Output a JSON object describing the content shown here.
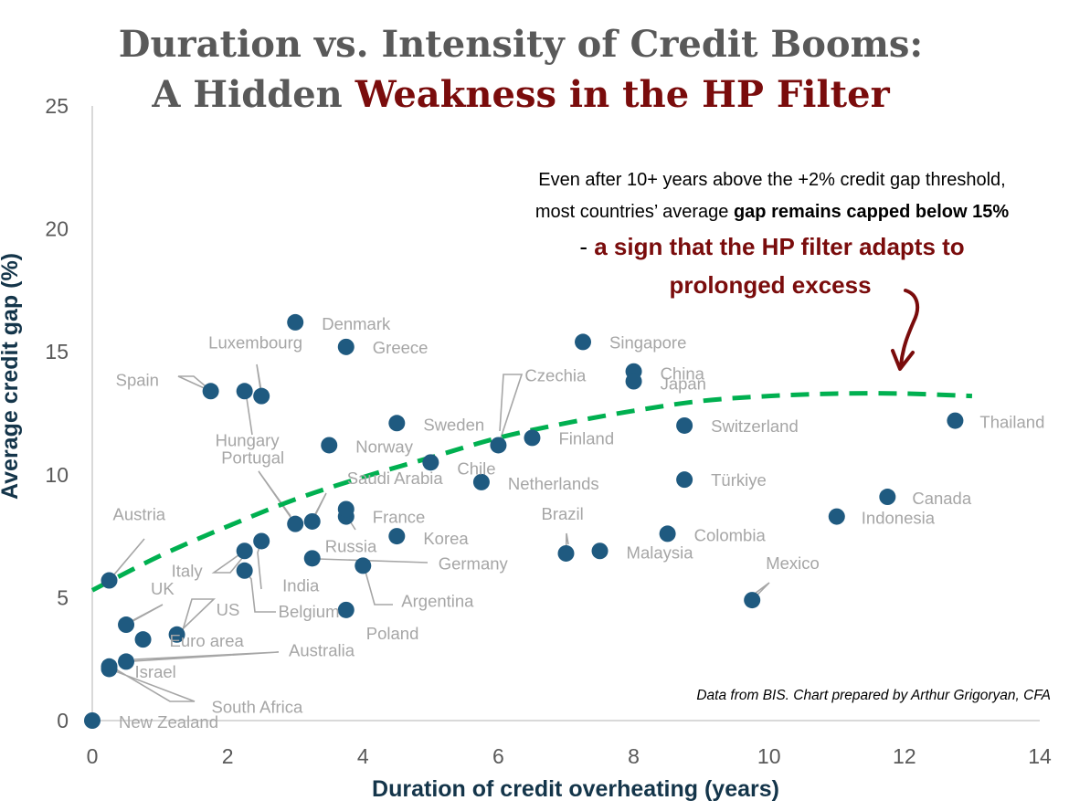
{
  "title": {
    "line1": "Duration vs. Intensity of Credit Booms:",
    "line2_prefix": "A Hidden ",
    "line2_highlight": "Weakness in the HP Filter"
  },
  "annotation": {
    "line1": "Even after 10+ years above the +2% credit gap threshold,",
    "line2_plain": "most countries’ average ",
    "line2_bold": "gap remains capped below 15%",
    "line3_dash": "- ",
    "line3_red": "a sign that the HP filter adapts to",
    "line4_red": "prolonged excess"
  },
  "source_note": "Data from BIS. Chart prepared by Arthur Grigoryan, CFA",
  "colors": {
    "points": "#1f5a80",
    "trend": "#00b050",
    "title_grey": "#595959",
    "title_red": "#7a0c0c",
    "label_grey": "#a6a6a6",
    "axis_title": "#14354a"
  },
  "chart_data": {
    "type": "scatter",
    "xlabel": "Duration of credit overheating (years)",
    "ylabel": "Average credit gap (%)",
    "xlim": [
      0,
      14
    ],
    "ylim": [
      0,
      25
    ],
    "xticks": [
      0,
      2,
      4,
      6,
      8,
      10,
      12,
      14
    ],
    "yticks": [
      0,
      5,
      10,
      15,
      20,
      25
    ],
    "grid": false,
    "points": [
      {
        "name": "Denmark",
        "x": 3.0,
        "y": 16.2
      },
      {
        "name": "Greece",
        "x": 3.75,
        "y": 15.2
      },
      {
        "name": "Luxembourg",
        "x": 2.5,
        "y": 13.2
      },
      {
        "name": "Spain",
        "x": 1.75,
        "y": 13.4
      },
      {
        "name": "Hungary",
        "x": 2.25,
        "y": 13.4
      },
      {
        "name": "Singapore",
        "x": 7.25,
        "y": 15.4
      },
      {
        "name": "China",
        "x": 8.0,
        "y": 14.2
      },
      {
        "name": "Japan",
        "x": 8.0,
        "y": 13.8
      },
      {
        "name": "Czechia",
        "x": 6.0,
        "y": 11.2
      },
      {
        "name": "Sweden",
        "x": 4.5,
        "y": 12.1
      },
      {
        "name": "Finland",
        "x": 6.5,
        "y": 11.5
      },
      {
        "name": "Switzerland",
        "x": 8.75,
        "y": 12.0
      },
      {
        "name": "Thailand",
        "x": 12.75,
        "y": 12.2
      },
      {
        "name": "Norway",
        "x": 3.5,
        "y": 11.2
      },
      {
        "name": "Chile",
        "x": 5.0,
        "y": 10.5
      },
      {
        "name": "Netherlands",
        "x": 5.75,
        "y": 9.7
      },
      {
        "name": "Türkiye",
        "x": 8.75,
        "y": 9.8
      },
      {
        "name": "Canada",
        "x": 11.75,
        "y": 9.1
      },
      {
        "name": "Indonesia",
        "x": 11.0,
        "y": 8.3
      },
      {
        "name": "Portugal",
        "x": 3.0,
        "y": 8.0
      },
      {
        "name": "Saudi Arabia",
        "x": 3.25,
        "y": 8.1
      },
      {
        "name": "France",
        "x": 3.75,
        "y": 8.3
      },
      {
        "name": "Korea",
        "x": 4.5,
        "y": 7.5
      },
      {
        "name": "Russia",
        "x": 3.75,
        "y": 8.6
      },
      {
        "name": "Germany",
        "x": 3.25,
        "y": 6.6
      },
      {
        "name": "Argentina",
        "x": 4.0,
        "y": 6.3
      },
      {
        "name": "Brazil",
        "x": 7.0,
        "y": 6.8
      },
      {
        "name": "Malaysia",
        "x": 7.5,
        "y": 6.9
      },
      {
        "name": "Colombia",
        "x": 8.5,
        "y": 7.6
      },
      {
        "name": "Mexico",
        "x": 9.75,
        "y": 4.9
      },
      {
        "name": "Italy",
        "x": 2.25,
        "y": 6.9
      },
      {
        "name": "India",
        "x": 2.5,
        "y": 7.3
      },
      {
        "name": "Belgium",
        "x": 2.25,
        "y": 6.1
      },
      {
        "name": "Poland",
        "x": 3.75,
        "y": 4.5
      },
      {
        "name": "Austria",
        "x": 0.25,
        "y": 5.7
      },
      {
        "name": "UK",
        "x": 0.5,
        "y": 3.9
      },
      {
        "name": "US",
        "x": 1.25,
        "y": 3.5
      },
      {
        "name": "Euro area",
        "x": 0.75,
        "y": 3.3
      },
      {
        "name": "Australia",
        "x": 0.5,
        "y": 2.4
      },
      {
        "name": "Israel",
        "x": 0.25,
        "y": 2.2
      },
      {
        "name": "South Africa",
        "x": 0.25,
        "y": 2.1
      },
      {
        "name": "New Zealand",
        "x": 0.0,
        "y": 0.0
      }
    ],
    "trendline": {
      "type": "dashed",
      "x": [
        0,
        1,
        2,
        3,
        4,
        5,
        6,
        7,
        8,
        9,
        10,
        11,
        12,
        13
      ],
      "y": [
        5.3,
        6.7,
        7.9,
        9.0,
        9.9,
        10.7,
        11.5,
        12.1,
        12.6,
        13.0,
        13.2,
        13.3,
        13.3,
        13.2
      ]
    }
  }
}
